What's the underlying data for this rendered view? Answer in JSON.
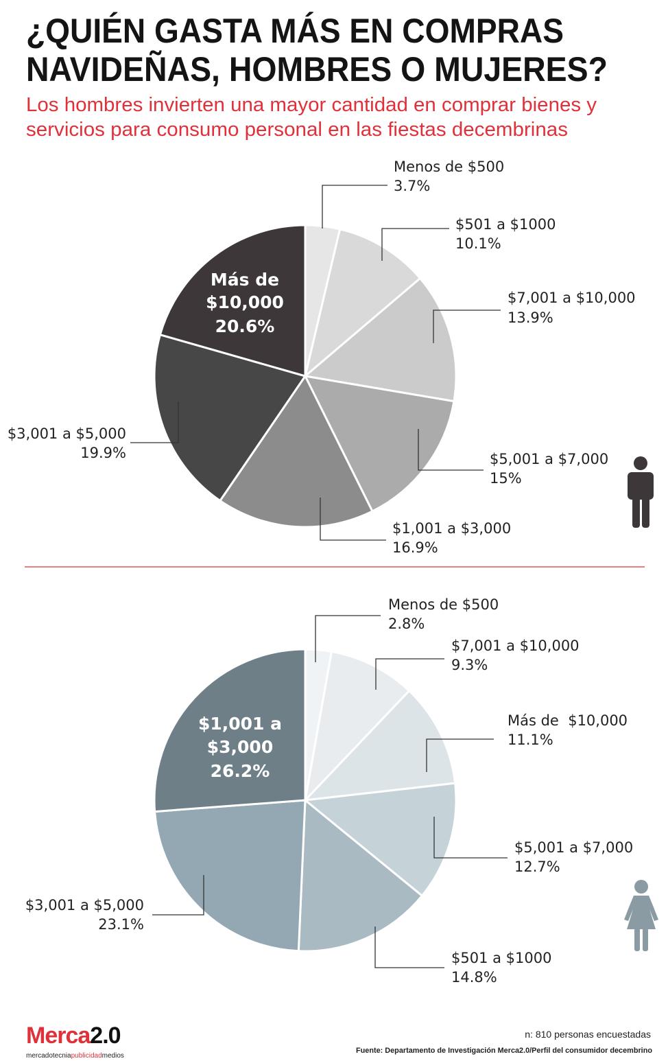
{
  "title": {
    "line1": "¿QUIÉN GASTA MÁS EN COMPRAS",
    "line2": "NAVIDEÑAS, HOMBRES O MUJERES?"
  },
  "subtitle": {
    "line1": "Los hombres invierten una mayor cantidad en comprar bienes y",
    "line2": "servicios para consumo personal en las fiestas decembrinas"
  },
  "chart_data": [
    {
      "type": "pie",
      "title": "Hombres",
      "icon": "man-icon",
      "categories": [
        "Menos de $500",
        "$501 a $1000",
        "$7,001 a $10,000",
        "$5,001 a $7,000",
        "$1,001 a $3,000",
        "$3,001 a $5,000",
        "Más de $10,000"
      ],
      "values": [
        3.7,
        10.1,
        13.9,
        15,
        16.9,
        19.9,
        20.6
      ],
      "value_labels": [
        "3.7%",
        "10.1%",
        "13.9%",
        "15%",
        "16.9%",
        "19.9%",
        "20.6%"
      ],
      "colors": [
        "#e6e6e6",
        "#d9d9d9",
        "#cbcbcb",
        "#ababab",
        "#8c8c8c",
        "#474747",
        "#3d3739"
      ],
      "highlight": {
        "line1": "Más de",
        "line2": "$10,000",
        "line3": "20.6%"
      }
    },
    {
      "type": "pie",
      "title": "Mujeres",
      "icon": "woman-icon",
      "categories": [
        "Menos de $500",
        "$7,001 a $10,000",
        "Más de  $10,000",
        "$5,001 a $7,000",
        "$501 a $1000",
        "$3,001 a $5,000",
        "$1,001 a $3,000"
      ],
      "values": [
        2.8,
        9.3,
        11.1,
        12.7,
        14.8,
        23.1,
        26.2
      ],
      "value_labels": [
        "2.8%",
        "9.3%",
        "11.1%",
        "12.7%",
        "14.8%",
        "23.1%",
        "26.2%"
      ],
      "colors": [
        "#f0f3f5",
        "#e8ecee",
        "#dde4e7",
        "#c5d3d8",
        "#a9bac2",
        "#93a8b3",
        "#6e7f88"
      ],
      "highlight": {
        "line1": "$1,001 a",
        "line2": "$3,000",
        "line3": "26.2%"
      }
    }
  ],
  "colors": {
    "accent": "#e0313a",
    "icon_man": "#3d3739",
    "icon_woman": "#8a9ba4"
  },
  "footer": {
    "logo_main": "Merca",
    "logo_num": "2.0",
    "logo_tag1": "mercadotecnia",
    "logo_tag2": "publicidad",
    "logo_tag3": "medios",
    "sample": "n: 810 personas encuestadas",
    "source": "Fuente: Departamento de Investigación Merca2.0/Perfil del consumidor decembrino"
  }
}
